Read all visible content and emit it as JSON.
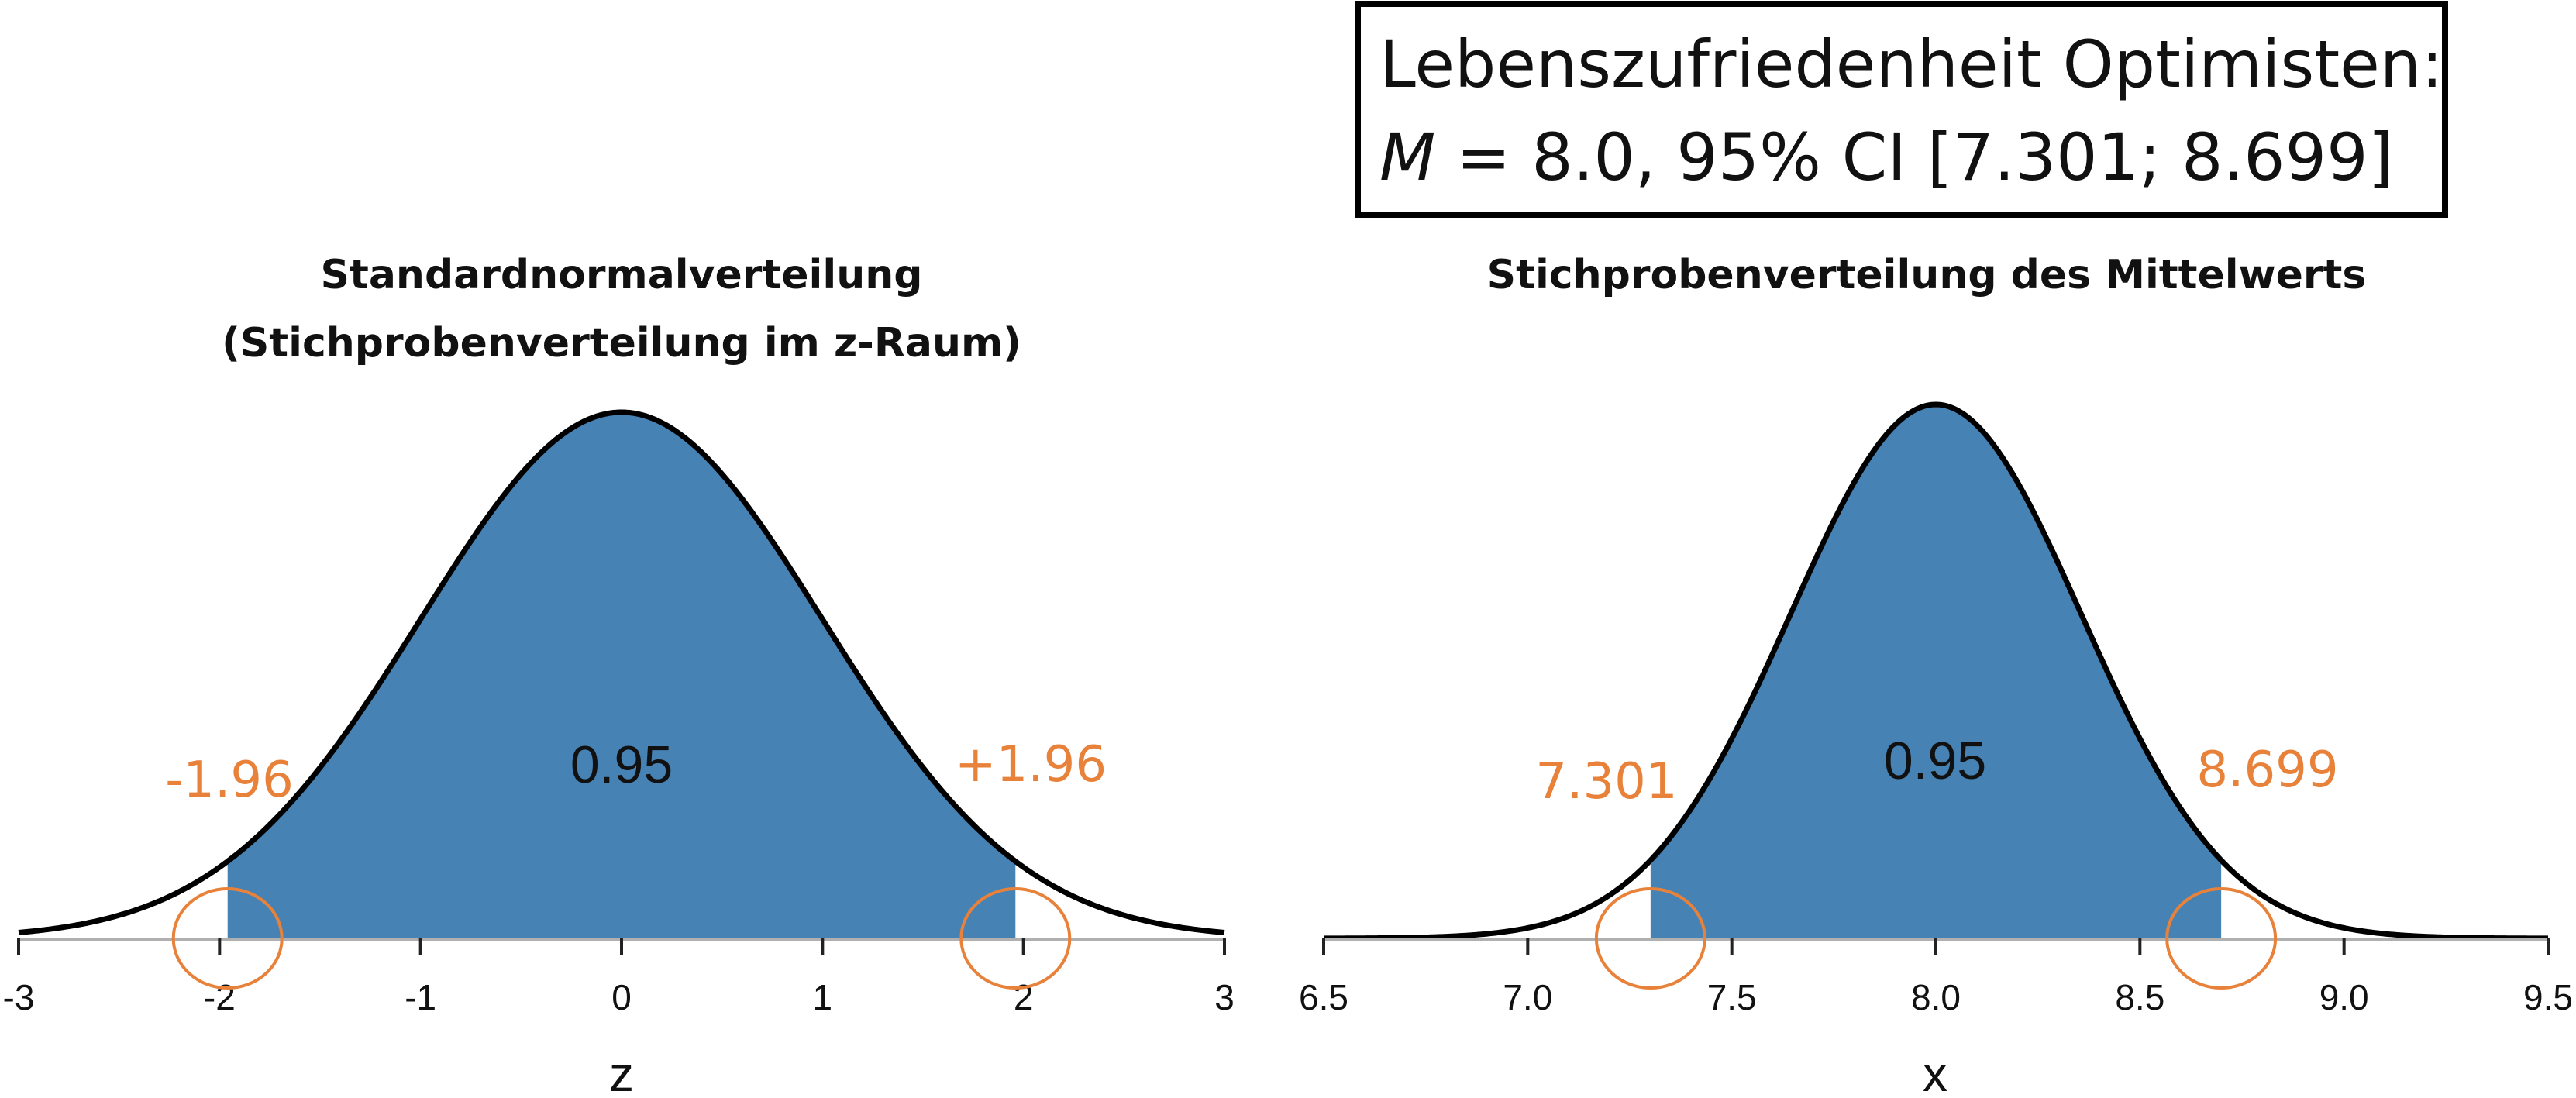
{
  "annotation_box": {
    "line1": "Lebenszufriedenheit Optimisten:",
    "line2_italic": "M",
    "line2_rest": " = 8.0, 95% CI [7.301; 8.699]"
  },
  "colors": {
    "fill": "#4682b4",
    "curve": "#000000",
    "highlight": "#e8823a",
    "axis": "#b0b0b0"
  },
  "chart_data": [
    {
      "type": "area",
      "distribution": "normal",
      "mean": 0,
      "sd": 1,
      "title": "Standardnormalverteilung",
      "subtitle": "(Stichprobenverteilung im z-Raum)",
      "xlabel": "z",
      "xlim": [
        -3,
        3
      ],
      "xticks": [
        -3,
        -2,
        -1,
        0,
        1,
        2,
        3
      ],
      "xtick_labels": [
        "-3",
        "-2",
        "-1",
        "0",
        "1",
        "2",
        "3"
      ],
      "shaded_range": [
        -1.96,
        1.96
      ],
      "shaded_area_label": "0.95",
      "lower_bound_label": "-1.96",
      "upper_bound_label": "+1.96",
      "circled_points": [
        -1.96,
        1.96
      ]
    },
    {
      "type": "area",
      "distribution": "normal",
      "mean": 8.0,
      "sd": 0.3566,
      "title": "Stichprobenverteilung des Mittelwerts",
      "xlabel": "x",
      "xlim": [
        6.5,
        9.5
      ],
      "xticks": [
        6.5,
        7.0,
        7.5,
        8.0,
        8.5,
        9.0,
        9.5
      ],
      "xtick_labels": [
        "6.5",
        "7.0",
        "7.5",
        "8.0",
        "8.5",
        "9.0",
        "9.5"
      ],
      "shaded_range": [
        7.301,
        8.699
      ],
      "shaded_area_label": "0.95",
      "lower_bound_label": "7.301",
      "upper_bound_label": "8.699",
      "circled_points": [
        7.301,
        8.699
      ]
    }
  ]
}
